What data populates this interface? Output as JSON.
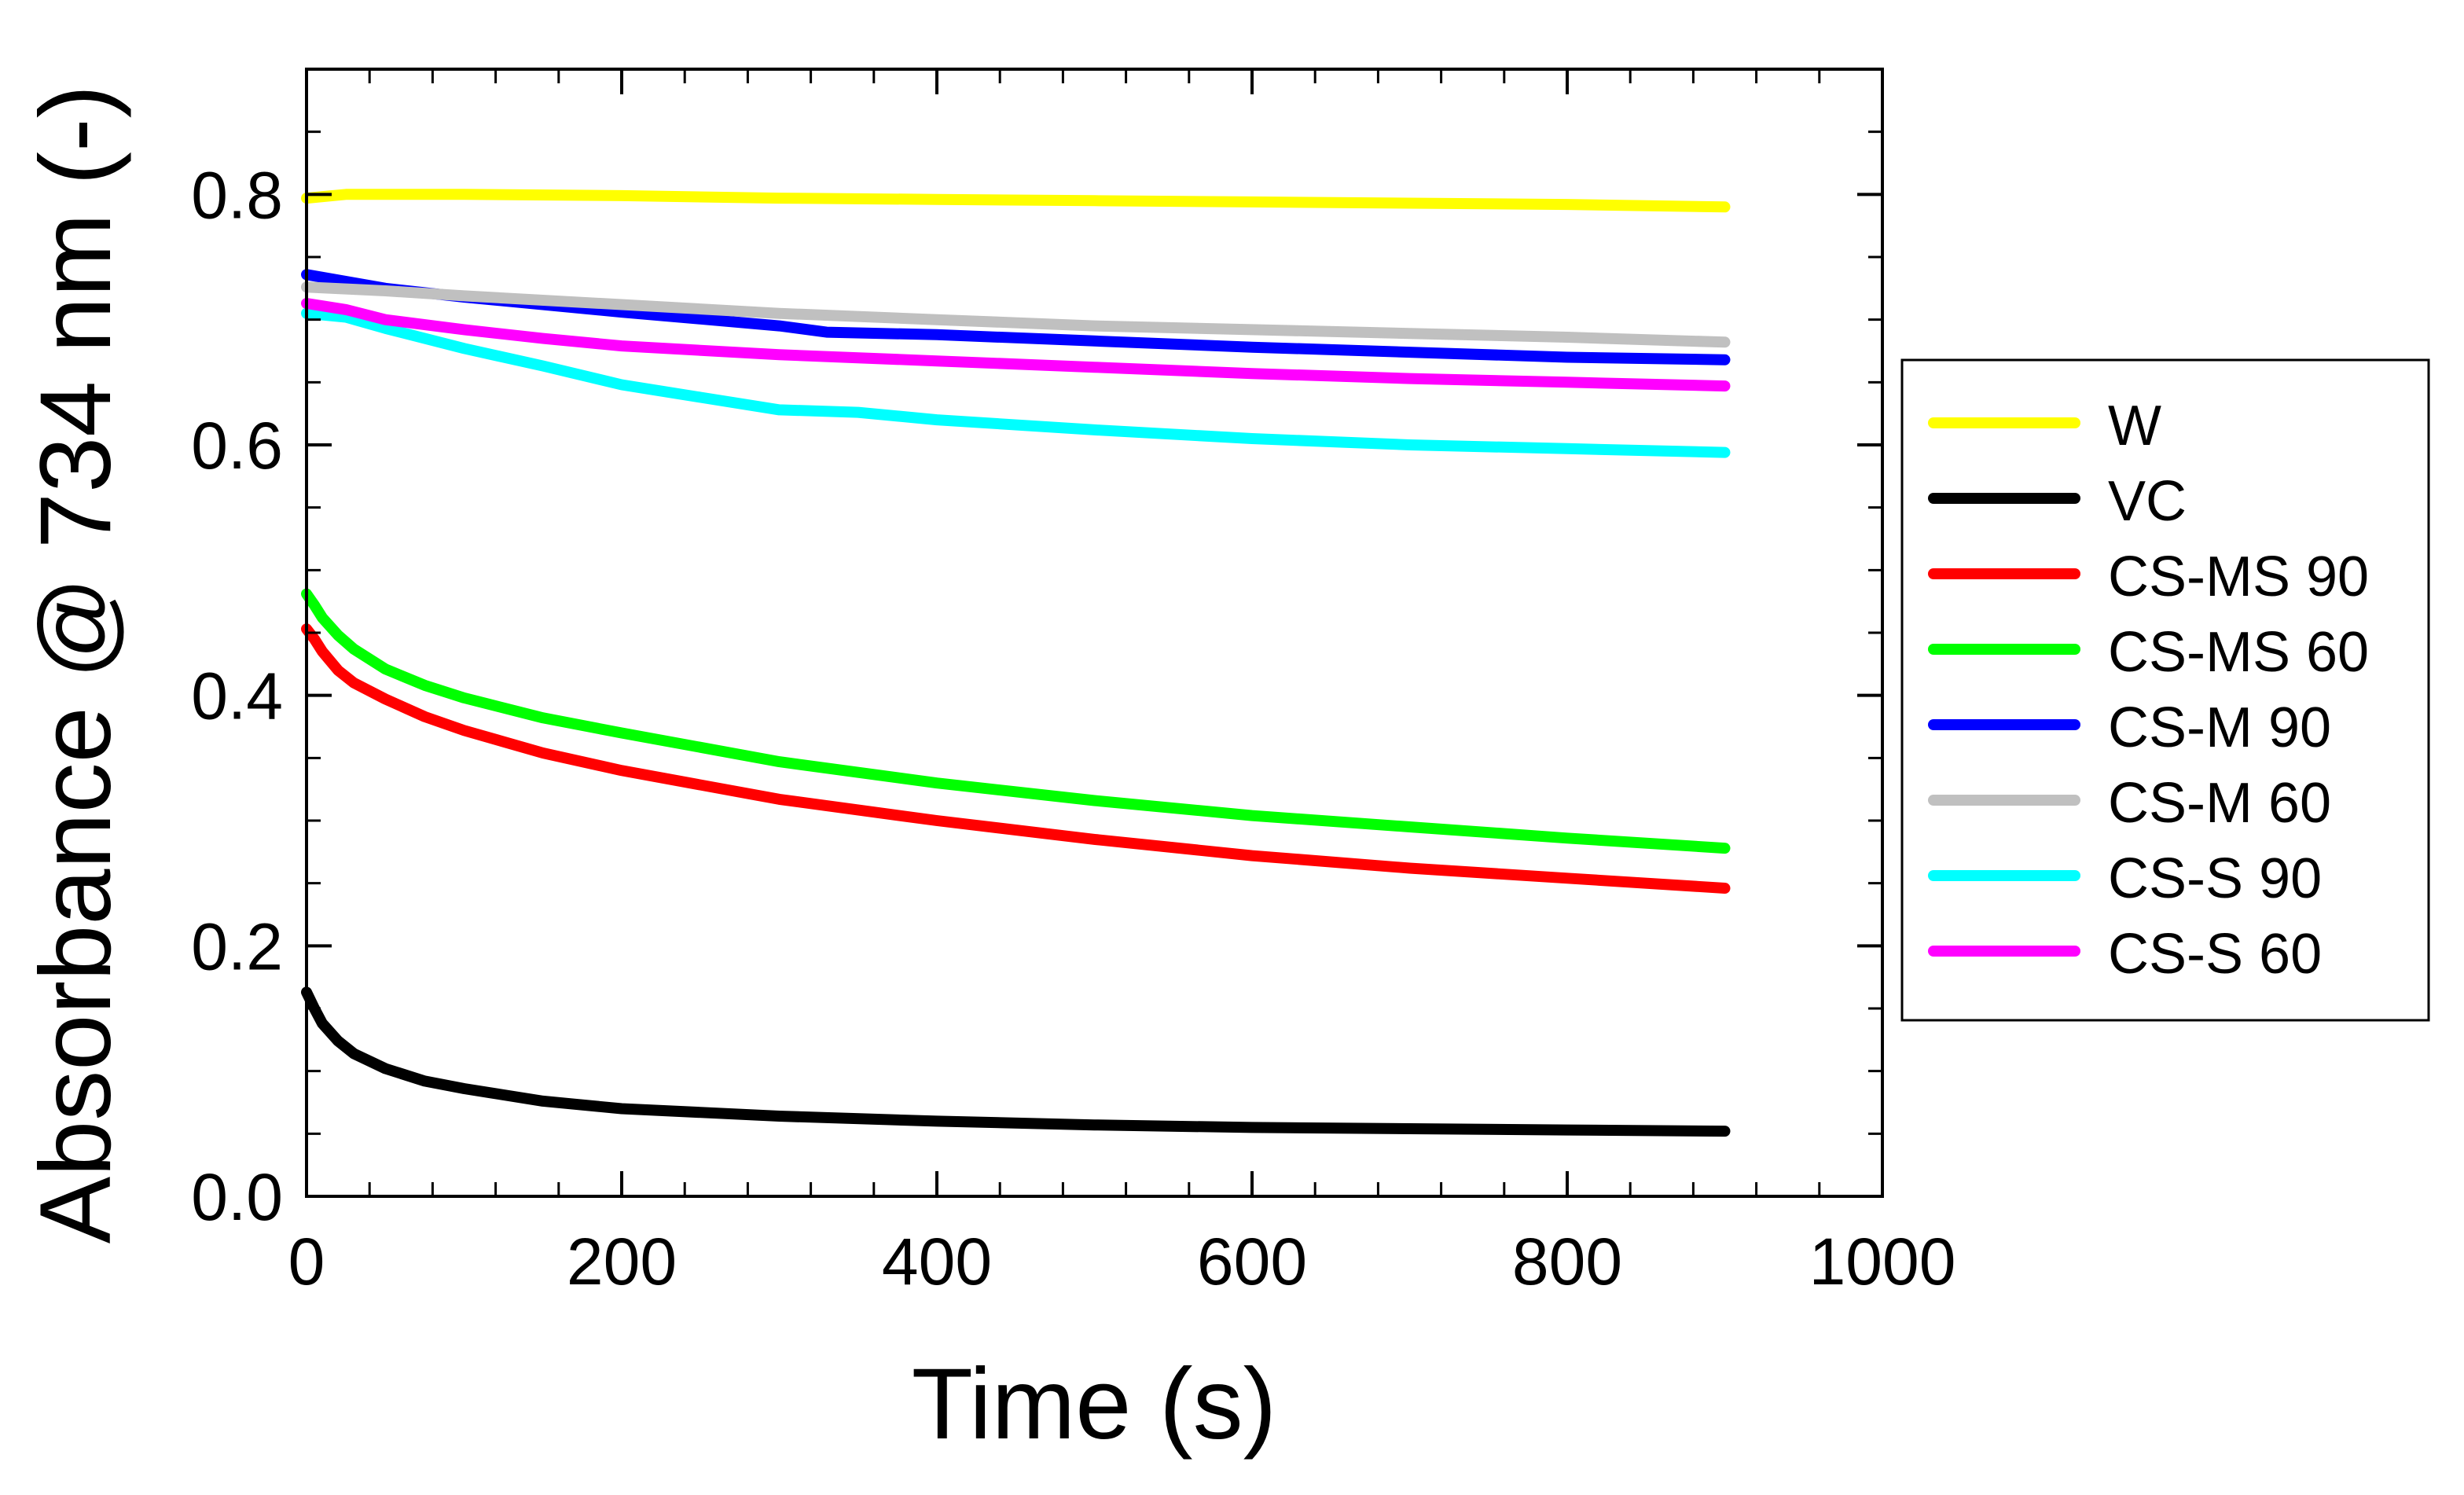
{
  "chart_data": {
    "type": "line",
    "title": "",
    "xlabel": "Time (s)",
    "ylabel": "Absorbance @ 734 nm (-)",
    "xlim": [
      0,
      1000
    ],
    "ylim": [
      0,
      0.9
    ],
    "xticks": [
      0,
      200,
      400,
      600,
      800,
      1000
    ],
    "xtick_labels": [
      "0",
      "200",
      "400",
      "600",
      "800",
      "1000"
    ],
    "yticks": [
      0.0,
      0.2,
      0.4,
      0.6,
      0.8
    ],
    "ytick_labels": [
      "0.0",
      "0.2",
      "0.4",
      "0.6",
      "0.8"
    ],
    "x_minor_step": 40,
    "y_minor_step": 0.05,
    "grid": false,
    "legend_position": "right",
    "series": [
      {
        "name": "W",
        "color": "#FFFF00",
        "x": [
          0,
          25,
          100,
          200,
          300,
          400,
          500,
          600,
          700,
          800,
          900
        ],
        "y": [
          0.797,
          0.8,
          0.8,
          0.799,
          0.797,
          0.796,
          0.795,
          0.794,
          0.793,
          0.792,
          0.79
        ]
      },
      {
        "name": "VC",
        "color": "#000000",
        "x": [
          0,
          5,
          10,
          20,
          30,
          50,
          75,
          100,
          150,
          200,
          300,
          400,
          500,
          600,
          700,
          800,
          900
        ],
        "y": [
          0.163,
          0.15,
          0.138,
          0.124,
          0.114,
          0.102,
          0.092,
          0.086,
          0.076,
          0.07,
          0.064,
          0.06,
          0.057,
          0.055,
          0.054,
          0.053,
          0.052
        ]
      },
      {
        "name": "CS-MS 90",
        "color": "#FF0000",
        "x": [
          0,
          5,
          10,
          20,
          30,
          50,
          75,
          100,
          150,
          200,
          300,
          400,
          500,
          600,
          700,
          800,
          900
        ],
        "y": [
          0.453,
          0.445,
          0.435,
          0.42,
          0.41,
          0.397,
          0.383,
          0.372,
          0.354,
          0.34,
          0.317,
          0.3,
          0.285,
          0.272,
          0.262,
          0.254,
          0.246
        ]
      },
      {
        "name": "CS-MS 60",
        "color": "#00FF00",
        "x": [
          0,
          5,
          10,
          20,
          30,
          50,
          75,
          100,
          150,
          200,
          300,
          400,
          500,
          600,
          700,
          800,
          900
        ],
        "y": [
          0.481,
          0.472,
          0.462,
          0.448,
          0.437,
          0.421,
          0.408,
          0.398,
          0.382,
          0.37,
          0.347,
          0.33,
          0.316,
          0.304,
          0.295,
          0.286,
          0.278
        ]
      },
      {
        "name": "CS-M 90",
        "color": "#0000FF",
        "x": [
          0,
          50,
          100,
          200,
          300,
          330,
          400,
          500,
          600,
          700,
          800,
          900
        ],
        "y": [
          0.736,
          0.725,
          0.718,
          0.706,
          0.695,
          0.69,
          0.688,
          0.683,
          0.678,
          0.674,
          0.67,
          0.668
        ]
      },
      {
        "name": "CS-M 60",
        "color": "#C0C0C0",
        "x": [
          0,
          50,
          100,
          200,
          300,
          400,
          500,
          600,
          700,
          800,
          900
        ],
        "y": [
          0.726,
          0.723,
          0.719,
          0.712,
          0.705,
          0.7,
          0.695,
          0.692,
          0.689,
          0.686,
          0.682
        ]
      },
      {
        "name": "CS-S 90",
        "color": "#00FFFF",
        "x": [
          0,
          25,
          50,
          100,
          150,
          200,
          250,
          300,
          350,
          400,
          500,
          600,
          700,
          800,
          900
        ],
        "y": [
          0.705,
          0.702,
          0.693,
          0.677,
          0.663,
          0.648,
          0.638,
          0.628,
          0.626,
          0.62,
          0.612,
          0.605,
          0.6,
          0.597,
          0.594
        ]
      },
      {
        "name": "CS-S 60",
        "color": "#FF00FF",
        "x": [
          0,
          25,
          50,
          100,
          150,
          200,
          300,
          400,
          500,
          600,
          700,
          800,
          900
        ],
        "y": [
          0.713,
          0.708,
          0.7,
          0.692,
          0.685,
          0.679,
          0.672,
          0.667,
          0.662,
          0.657,
          0.653,
          0.65,
          0.647
        ]
      }
    ]
  }
}
